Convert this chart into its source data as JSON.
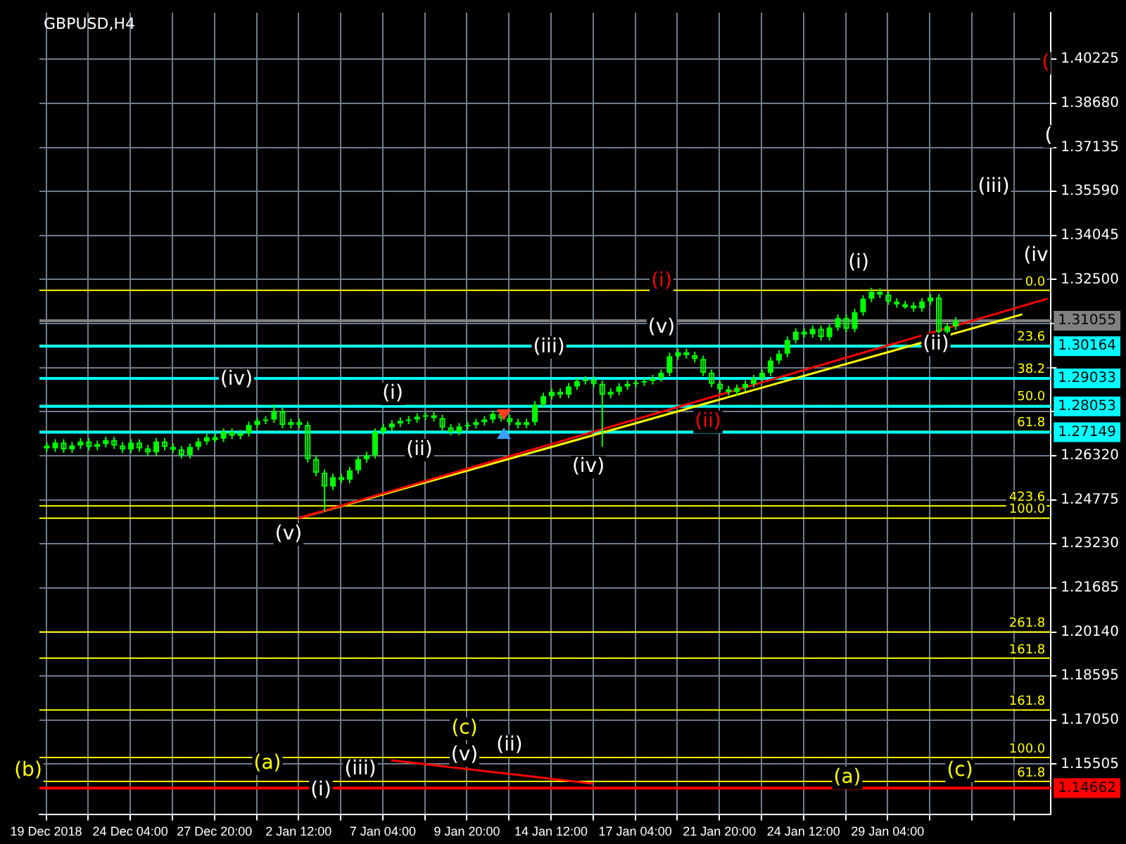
{
  "chart_data": {
    "type": "candlestick",
    "title": "GBPUSD,H4",
    "color": "#00ff00",
    "grid": true,
    "categories": [
      "19 Dec 2018",
      null,
      null,
      null,
      null,
      null,
      null,
      null,
      null,
      null,
      "24 Dec 04:00",
      null,
      null,
      null,
      null,
      null,
      null,
      null,
      null,
      null,
      "27 Dec 20:00",
      null,
      null,
      null,
      null,
      null,
      null,
      null,
      null,
      null,
      "2 Jan 12:00",
      null,
      null,
      null,
      null,
      null,
      null,
      null,
      null,
      null,
      "7 Jan 04:00",
      null,
      null,
      null,
      null,
      null,
      null,
      null,
      null,
      null,
      "9 Jan 20:00",
      null,
      null,
      null,
      null,
      null,
      null,
      null,
      null,
      null,
      "14 Jan 12:00",
      null,
      null,
      null,
      null,
      null,
      null,
      null,
      null,
      null,
      "17 Jan 04:00",
      null,
      null,
      null,
      null,
      null,
      null,
      null,
      null,
      null,
      "21 Jan 20:00",
      null,
      null,
      null,
      null,
      null,
      null,
      null,
      null,
      null,
      "24 Jan 12:00",
      null,
      null,
      null,
      null,
      null,
      null,
      null,
      null,
      null,
      "29 Jan 04:00",
      null,
      null,
      null,
      null,
      null,
      null,
      null,
      null,
      null,
      null,
      null,
      null,
      null,
      null,
      null,
      null,
      null,
      null,
      null
    ],
    "ohlc": [
      [
        1.2668,
        1.268,
        1.2646,
        1.2658
      ],
      [
        1.2658,
        1.269,
        1.2646,
        1.2678
      ],
      [
        1.2678,
        1.269,
        1.2642,
        1.2654
      ],
      [
        1.2654,
        1.268,
        1.2642,
        1.2668
      ],
      [
        1.2668,
        1.2694,
        1.2656,
        1.2682
      ],
      [
        1.2682,
        1.2694,
        1.2651,
        1.2663
      ],
      [
        1.2663,
        1.2685,
        1.2651,
        1.2673
      ],
      [
        1.2673,
        1.2699,
        1.2661,
        1.2687
      ],
      [
        1.2687,
        1.2699,
        1.2656,
        1.2668
      ],
      [
        1.2668,
        1.268,
        1.2642,
        1.2654
      ],
      [
        1.2654,
        1.269,
        1.2642,
        1.2678
      ],
      [
        1.2678,
        1.269,
        1.2646,
        1.2658
      ],
      [
        1.2658,
        1.267,
        1.2632,
        1.2644
      ],
      [
        1.2644,
        1.2694,
        1.2632,
        1.2682
      ],
      [
        1.2682,
        1.2694,
        1.2651,
        1.2663
      ],
      [
        1.2663,
        1.2675,
        1.2642,
        1.2654
      ],
      [
        1.2654,
        1.2666,
        1.2622,
        1.2634
      ],
      [
        1.2634,
        1.2675,
        1.2622,
        1.2663
      ],
      [
        1.2663,
        1.2694,
        1.2651,
        1.2682
      ],
      [
        1.2682,
        1.2709,
        1.267,
        1.2697
      ],
      [
        1.2697,
        1.2709,
        1.268,
        1.2692
      ],
      [
        1.2692,
        1.2728,
        1.268,
        1.2716
      ],
      [
        1.2716,
        1.2728,
        1.269,
        1.2702
      ],
      [
        1.2702,
        1.2723,
        1.269,
        1.2711
      ],
      [
        1.2711,
        1.2752,
        1.2699,
        1.274
      ],
      [
        1.274,
        1.2767,
        1.2728,
        1.2755
      ],
      [
        1.2755,
        1.2771,
        1.2743,
        1.2759
      ],
      [
        1.2759,
        1.2812,
        1.2747,
        1.2788
      ],
      [
        1.2788,
        1.28,
        1.2728,
        1.274
      ],
      [
        1.274,
        1.2762,
        1.2728,
        1.275
      ],
      [
        1.275,
        1.2762,
        1.2728,
        1.274
      ],
      [
        1.274,
        1.2752,
        1.2608,
        1.262
      ],
      [
        1.262,
        1.2632,
        1.256,
        1.2572
      ],
      [
        1.2572,
        1.2584,
        1.2437,
        1.2524
      ],
      [
        1.2524,
        1.2569,
        1.2512,
        1.2557
      ],
      [
        1.2557,
        1.2569,
        1.2536,
        1.2548
      ],
      [
        1.2548,
        1.2593,
        1.2536,
        1.2581
      ],
      [
        1.2581,
        1.2632,
        1.2569,
        1.262
      ],
      [
        1.262,
        1.2646,
        1.2608,
        1.2634
      ],
      [
        1.2634,
        1.2728,
        1.2622,
        1.2716
      ],
      [
        1.2716,
        1.2743,
        1.2704,
        1.2731
      ],
      [
        1.2731,
        1.2757,
        1.2719,
        1.2745
      ],
      [
        1.2745,
        1.2767,
        1.2733,
        1.2755
      ],
      [
        1.2755,
        1.2771,
        1.2743,
        1.2759
      ],
      [
        1.2759,
        1.2781,
        1.2747,
        1.2769
      ],
      [
        1.2769,
        1.2786,
        1.2757,
        1.2774
      ],
      [
        1.2774,
        1.2786,
        1.2752,
        1.2764
      ],
      [
        1.2764,
        1.2776,
        1.2719,
        1.2731
      ],
      [
        1.2731,
        1.2743,
        1.2704,
        1.2716
      ],
      [
        1.2716,
        1.2747,
        1.2704,
        1.2735
      ],
      [
        1.2735,
        1.2752,
        1.2723,
        1.274
      ],
      [
        1.274,
        1.2762,
        1.2728,
        1.275
      ],
      [
        1.275,
        1.2771,
        1.2738,
        1.2759
      ],
      [
        1.2759,
        1.2791,
        1.2747,
        1.2779
      ],
      [
        1.2779,
        1.2791,
        1.2752,
        1.2764
      ],
      [
        1.2764,
        1.2776,
        1.2738,
        1.275
      ],
      [
        1.275,
        1.2762,
        1.2728,
        1.274
      ],
      [
        1.274,
        1.2762,
        1.2728,
        1.275
      ],
      [
        1.275,
        1.2824,
        1.2738,
        1.2812
      ],
      [
        1.2812,
        1.2853,
        1.28,
        1.2841
      ],
      [
        1.2841,
        1.2868,
        1.2829,
        1.2856
      ],
      [
        1.2856,
        1.2868,
        1.2834,
        1.2846
      ],
      [
        1.2846,
        1.2887,
        1.2834,
        1.2875
      ],
      [
        1.2875,
        1.2906,
        1.2863,
        1.2894
      ],
      [
        1.2894,
        1.2911,
        1.2882,
        1.2899
      ],
      [
        1.2899,
        1.2911,
        1.2872,
        1.2884
      ],
      [
        1.2884,
        1.2896,
        1.2663,
        1.2846
      ],
      [
        1.2846,
        1.2868,
        1.2834,
        1.2856
      ],
      [
        1.2856,
        1.2887,
        1.2844,
        1.2875
      ],
      [
        1.2875,
        1.2896,
        1.2863,
        1.2884
      ],
      [
        1.2884,
        1.2901,
        1.2872,
        1.2889
      ],
      [
        1.2889,
        1.2906,
        1.2877,
        1.2894
      ],
      [
        1.2894,
        1.2916,
        1.2882,
        1.2904
      ],
      [
        1.2904,
        1.2935,
        1.2892,
        1.2923
      ],
      [
        1.2923,
        1.2993,
        1.2911,
        1.2981
      ],
      [
        1.2981,
        1.3007,
        1.2969,
        1.2995
      ],
      [
        1.2995,
        1.3007,
        1.2973,
        1.2985
      ],
      [
        1.2985,
        1.2997,
        1.2959,
        1.2971
      ],
      [
        1.2971,
        1.2983,
        1.2911,
        1.2923
      ],
      [
        1.2923,
        1.2935,
        1.2872,
        1.2884
      ],
      [
        1.2884,
        1.2896,
        1.2853,
        1.2865
      ],
      [
        1.2865,
        1.2877,
        1.2844,
        1.2856
      ],
      [
        1.2856,
        1.2882,
        1.2844,
        1.287
      ],
      [
        1.287,
        1.2896,
        1.2858,
        1.2884
      ],
      [
        1.2884,
        1.2916,
        1.2872,
        1.2904
      ],
      [
        1.2904,
        1.2935,
        1.2892,
        1.2923
      ],
      [
        1.2923,
        1.2978,
        1.2911,
        1.2966
      ],
      [
        1.2966,
        1.3002,
        1.2954,
        1.299
      ],
      [
        1.299,
        1.305,
        1.2978,
        1.3038
      ],
      [
        1.3038,
        1.3079,
        1.3026,
        1.3067
      ],
      [
        1.3067,
        1.3079,
        1.3046,
        1.3058
      ],
      [
        1.3058,
        1.3089,
        1.3046,
        1.3077
      ],
      [
        1.3077,
        1.3089,
        1.3036,
        1.3048
      ],
      [
        1.3048,
        1.3094,
        1.3036,
        1.3082
      ],
      [
        1.3082,
        1.3127,
        1.307,
        1.3115
      ],
      [
        1.3115,
        1.3127,
        1.3065,
        1.3077
      ],
      [
        1.3077,
        1.3147,
        1.3065,
        1.3135
      ],
      [
        1.3135,
        1.3195,
        1.3123,
        1.3183
      ],
      [
        1.3183,
        1.3221,
        1.3171,
        1.3207
      ],
      [
        1.3207,
        1.3219,
        1.3185,
        1.3197
      ],
      [
        1.3197,
        1.3209,
        1.3161,
        1.3173
      ],
      [
        1.3173,
        1.3185,
        1.3151,
        1.3163
      ],
      [
        1.3163,
        1.3175,
        1.3147,
        1.3159
      ],
      [
        1.3159,
        1.3171,
        1.3137,
        1.3149
      ],
      [
        1.3149,
        1.3185,
        1.3137,
        1.3173
      ],
      [
        1.3173,
        1.3199,
        1.3161,
        1.3187
      ],
      [
        1.3187,
        1.3199,
        1.3055,
        1.3067
      ],
      [
        1.3067,
        1.3098,
        1.3055,
        1.3086
      ],
      [
        1.3086,
        1.3118,
        1.3074,
        1.3106
      ],
      null,
      null,
      null,
      null,
      null,
      null,
      null,
      null,
      null,
      null,
      null
    ],
    "series": [
      {
        "type": "line",
        "color": "#ff0000",
        "values": [
          null,
          null,
          null,
          null,
          null,
          null,
          null,
          null,
          null,
          null,
          null,
          null,
          null,
          null,
          null,
          null,
          null,
          null,
          null,
          null,
          null,
          null,
          null,
          null,
          null,
          null,
          null,
          null,
          null,
          null,
          1.2413,
          null,
          null,
          null,
          null,
          null,
          null,
          null,
          null,
          null,
          null,
          null,
          null,
          null,
          null,
          null,
          null,
          null,
          null,
          null,
          null,
          null,
          null,
          null,
          null,
          null,
          null,
          null,
          null,
          null,
          null,
          null,
          null,
          null,
          null,
          null,
          null,
          null,
          null,
          null,
          null,
          null,
          null,
          null,
          null,
          null,
          null,
          null,
          null,
          null,
          null,
          null,
          null,
          null,
          null,
          null,
          null,
          null,
          null,
          null,
          null,
          null,
          null,
          null,
          null,
          null,
          null,
          null,
          null,
          null,
          null,
          null,
          null,
          null,
          null,
          null,
          null,
          null,
          null,
          null,
          null,
          null,
          null,
          null,
          null,
          null,
          null,
          null,
          null,
          1.3183
        ]
      },
      {
        "type": "line",
        "color": "#ffff00",
        "values": [
          null,
          null,
          null,
          null,
          null,
          null,
          null,
          null,
          null,
          null,
          null,
          null,
          null,
          null,
          null,
          null,
          null,
          null,
          null,
          null,
          null,
          null,
          null,
          null,
          null,
          null,
          null,
          null,
          null,
          null,
          1.2413,
          null,
          null,
          null,
          null,
          null,
          null,
          null,
          null,
          null,
          null,
          null,
          null,
          null,
          null,
          null,
          null,
          null,
          null,
          null,
          null,
          null,
          null,
          null,
          null,
          null,
          null,
          null,
          null,
          null,
          null,
          null,
          null,
          null,
          null,
          null,
          null,
          null,
          null,
          null,
          null,
          null,
          null,
          null,
          null,
          null,
          null,
          null,
          null,
          null,
          null,
          null,
          null,
          null,
          null,
          null,
          null,
          null,
          null,
          null,
          null,
          null,
          null,
          null,
          null,
          null,
          null,
          null,
          null,
          null,
          null,
          null,
          null,
          null,
          null,
          null,
          null,
          null,
          null,
          null,
          null,
          null,
          null,
          null,
          null,
          null,
          1.3128,
          null,
          null,
          null
        ]
      },
      {
        "type": "line",
        "color": "#ff0000",
        "values": [
          null,
          null,
          null,
          null,
          null,
          null,
          null,
          null,
          null,
          null,
          null,
          null,
          null,
          null,
          null,
          null,
          null,
          null,
          null,
          null,
          null,
          null,
          null,
          null,
          null,
          null,
          null,
          null,
          null,
          null,
          null,
          null,
          null,
          null,
          null,
          null,
          null,
          null,
          null,
          null,
          null,
          1.1564,
          null,
          null,
          null,
          null,
          null,
          null,
          null,
          null,
          null,
          null,
          null,
          null,
          null,
          null,
          null,
          null,
          null,
          null,
          null,
          null,
          null,
          null,
          null,
          1.1482,
          null,
          null,
          null,
          null,
          null,
          null,
          null,
          null,
          null,
          null,
          null,
          null,
          null,
          null,
          null,
          null,
          null,
          null,
          null,
          null,
          null,
          null,
          null,
          null,
          null,
          null,
          null,
          null,
          null,
          null,
          null,
          null,
          null,
          null,
          null,
          null,
          null,
          null,
          null,
          null,
          null,
          null,
          null,
          null,
          null,
          null,
          null,
          null,
          null,
          null,
          null,
          null,
          null,
          null
        ]
      }
    ],
    "ylim": [
      1.1373,
      1.4186
    ],
    "yticks": [
      {
        "value": 1.15505,
        "label": "1.15505"
      },
      {
        "value": 1.1705,
        "label": "1.17050"
      },
      {
        "value": 1.18595,
        "label": "1.18595"
      },
      {
        "value": 1.2014,
        "label": "1.20140"
      },
      {
        "value": 1.21685,
        "label": "1.21685"
      },
      {
        "value": 1.2323,
        "label": "1.23230"
      },
      {
        "value": 1.24775,
        "label": "1.24775"
      },
      {
        "value": 1.2632,
        "label": "1.26320"
      },
      {
        "value": 1.27865,
        "label": null
      },
      {
        "value": 1.2941,
        "label": null
      },
      {
        "value": 1.30955,
        "label": null
      },
      {
        "value": 1.325,
        "label": "1.32500"
      },
      {
        "value": 1.34045,
        "label": "1.34045"
      },
      {
        "value": 1.3559,
        "label": "1.35590"
      },
      {
        "value": 1.37135,
        "label": "1.37135"
      },
      {
        "value": 1.3868,
        "label": "1.38680"
      },
      {
        "value": 1.40225,
        "label": "1.40225"
      }
    ],
    "ref_lines": [
      {
        "axis": "y",
        "value": 1.3212,
        "color": "#ffff00"
      },
      {
        "axis": "y",
        "value": 1.3019,
        "color": "#ffff00"
      },
      {
        "axis": "y",
        "value": 1.2905,
        "color": "#ffff00"
      },
      {
        "axis": "y",
        "value": 1.2808,
        "color": "#ffff00"
      },
      {
        "axis": "y",
        "value": 1.2717,
        "color": "#ffff00"
      },
      {
        "axis": "y",
        "value": 1.2456,
        "color": "#ffff00"
      },
      {
        "axis": "y",
        "value": 1.2413,
        "color": "#ffff00"
      },
      {
        "axis": "y",
        "value": 1.2014,
        "color": "#ffff00"
      },
      {
        "axis": "y",
        "value": 1.1922,
        "color": "#ffff00"
      },
      {
        "axis": "y",
        "value": 1.174,
        "color": "#ffff00"
      },
      {
        "axis": "y",
        "value": 1.1574,
        "color": "#ffff00"
      },
      {
        "axis": "y",
        "value": 1.149,
        "color": "#ffff00"
      },
      {
        "axis": "y",
        "value": 1.31055,
        "label": "1.31055",
        "color": "#808080"
      },
      {
        "axis": "y",
        "value": 1.30164,
        "label": "1.30164",
        "color": "#00ffff"
      },
      {
        "axis": "y",
        "value": 1.29033,
        "label": "1.29033",
        "color": "#00ffff"
      },
      {
        "axis": "y",
        "value": 1.28053,
        "label": "1.28053",
        "color": "#00ffff"
      },
      {
        "axis": "y",
        "value": 1.27149,
        "label": "1.27149",
        "color": "#00ffff"
      },
      {
        "axis": "y",
        "value": 1.14662,
        "label": "1.14662",
        "color": "#ff0000"
      }
    ],
    "annotations": [
      "(iv)",
      "(v)",
      "(i)",
      "(ii)",
      "(iii)",
      "(iv)",
      "(v)",
      "(i)",
      "(ii)",
      "(i)",
      "(ii)",
      "(iii)",
      "(iv",
      "(",
      "(",
      "(b)",
      "(a)",
      "(i)",
      "(iii)",
      "(c)",
      "(v)",
      "(ii)",
      "(a)",
      "(c)",
      "0.0",
      "23.6",
      "38.2",
      "50.0",
      "61.8",
      "423.6",
      "100.0",
      "261.8",
      "161.8",
      "161.8",
      "100.0",
      "61.8"
    ]
  }
}
